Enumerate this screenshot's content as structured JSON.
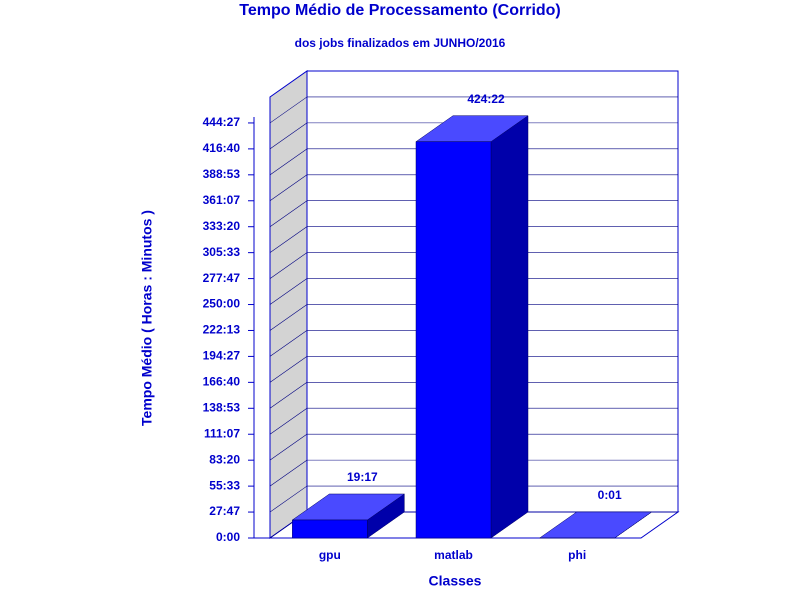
{
  "chart_data": {
    "type": "bar3d",
    "title": "Tempo Médio de Processamento (Corrido)",
    "subtitle": "dos jobs finalizados em JUNHO/2016",
    "x_label": "Classes",
    "y_label": "Tempo Médio ( Horas : Minutos )",
    "categories": [
      "gpu",
      "matlab",
      "phi"
    ],
    "values": [
      19.283,
      424.367,
      0.017
    ],
    "value_labels": [
      "19:17",
      "424:22",
      "0:01"
    ],
    "color": "#0000ff",
    "ylim": [
      0,
      472.222
    ],
    "yticks": [
      {
        "value": 0,
        "label": "0:00"
      },
      {
        "value": 27.778,
        "label": "27:47"
      },
      {
        "value": 55.556,
        "label": "55:33"
      },
      {
        "value": 83.333,
        "label": "83:20"
      },
      {
        "value": 111.111,
        "label": "111:07"
      },
      {
        "value": 138.889,
        "label": "138:53"
      },
      {
        "value": 166.667,
        "label": "166:40"
      },
      {
        "value": 194.444,
        "label": "194:27"
      },
      {
        "value": 222.222,
        "label": "222:13"
      },
      {
        "value": 250,
        "label": "250:00"
      },
      {
        "value": 277.778,
        "label": "277:47"
      },
      {
        "value": 305.556,
        "label": "305:33"
      },
      {
        "value": 333.333,
        "label": "333:20"
      },
      {
        "value": 361.111,
        "label": "361:07"
      },
      {
        "value": 388.889,
        "label": "388:53"
      },
      {
        "value": 416.667,
        "label": "416:40"
      },
      {
        "value": 444.444,
        "label": "444:27"
      }
    ],
    "grid": true
  }
}
